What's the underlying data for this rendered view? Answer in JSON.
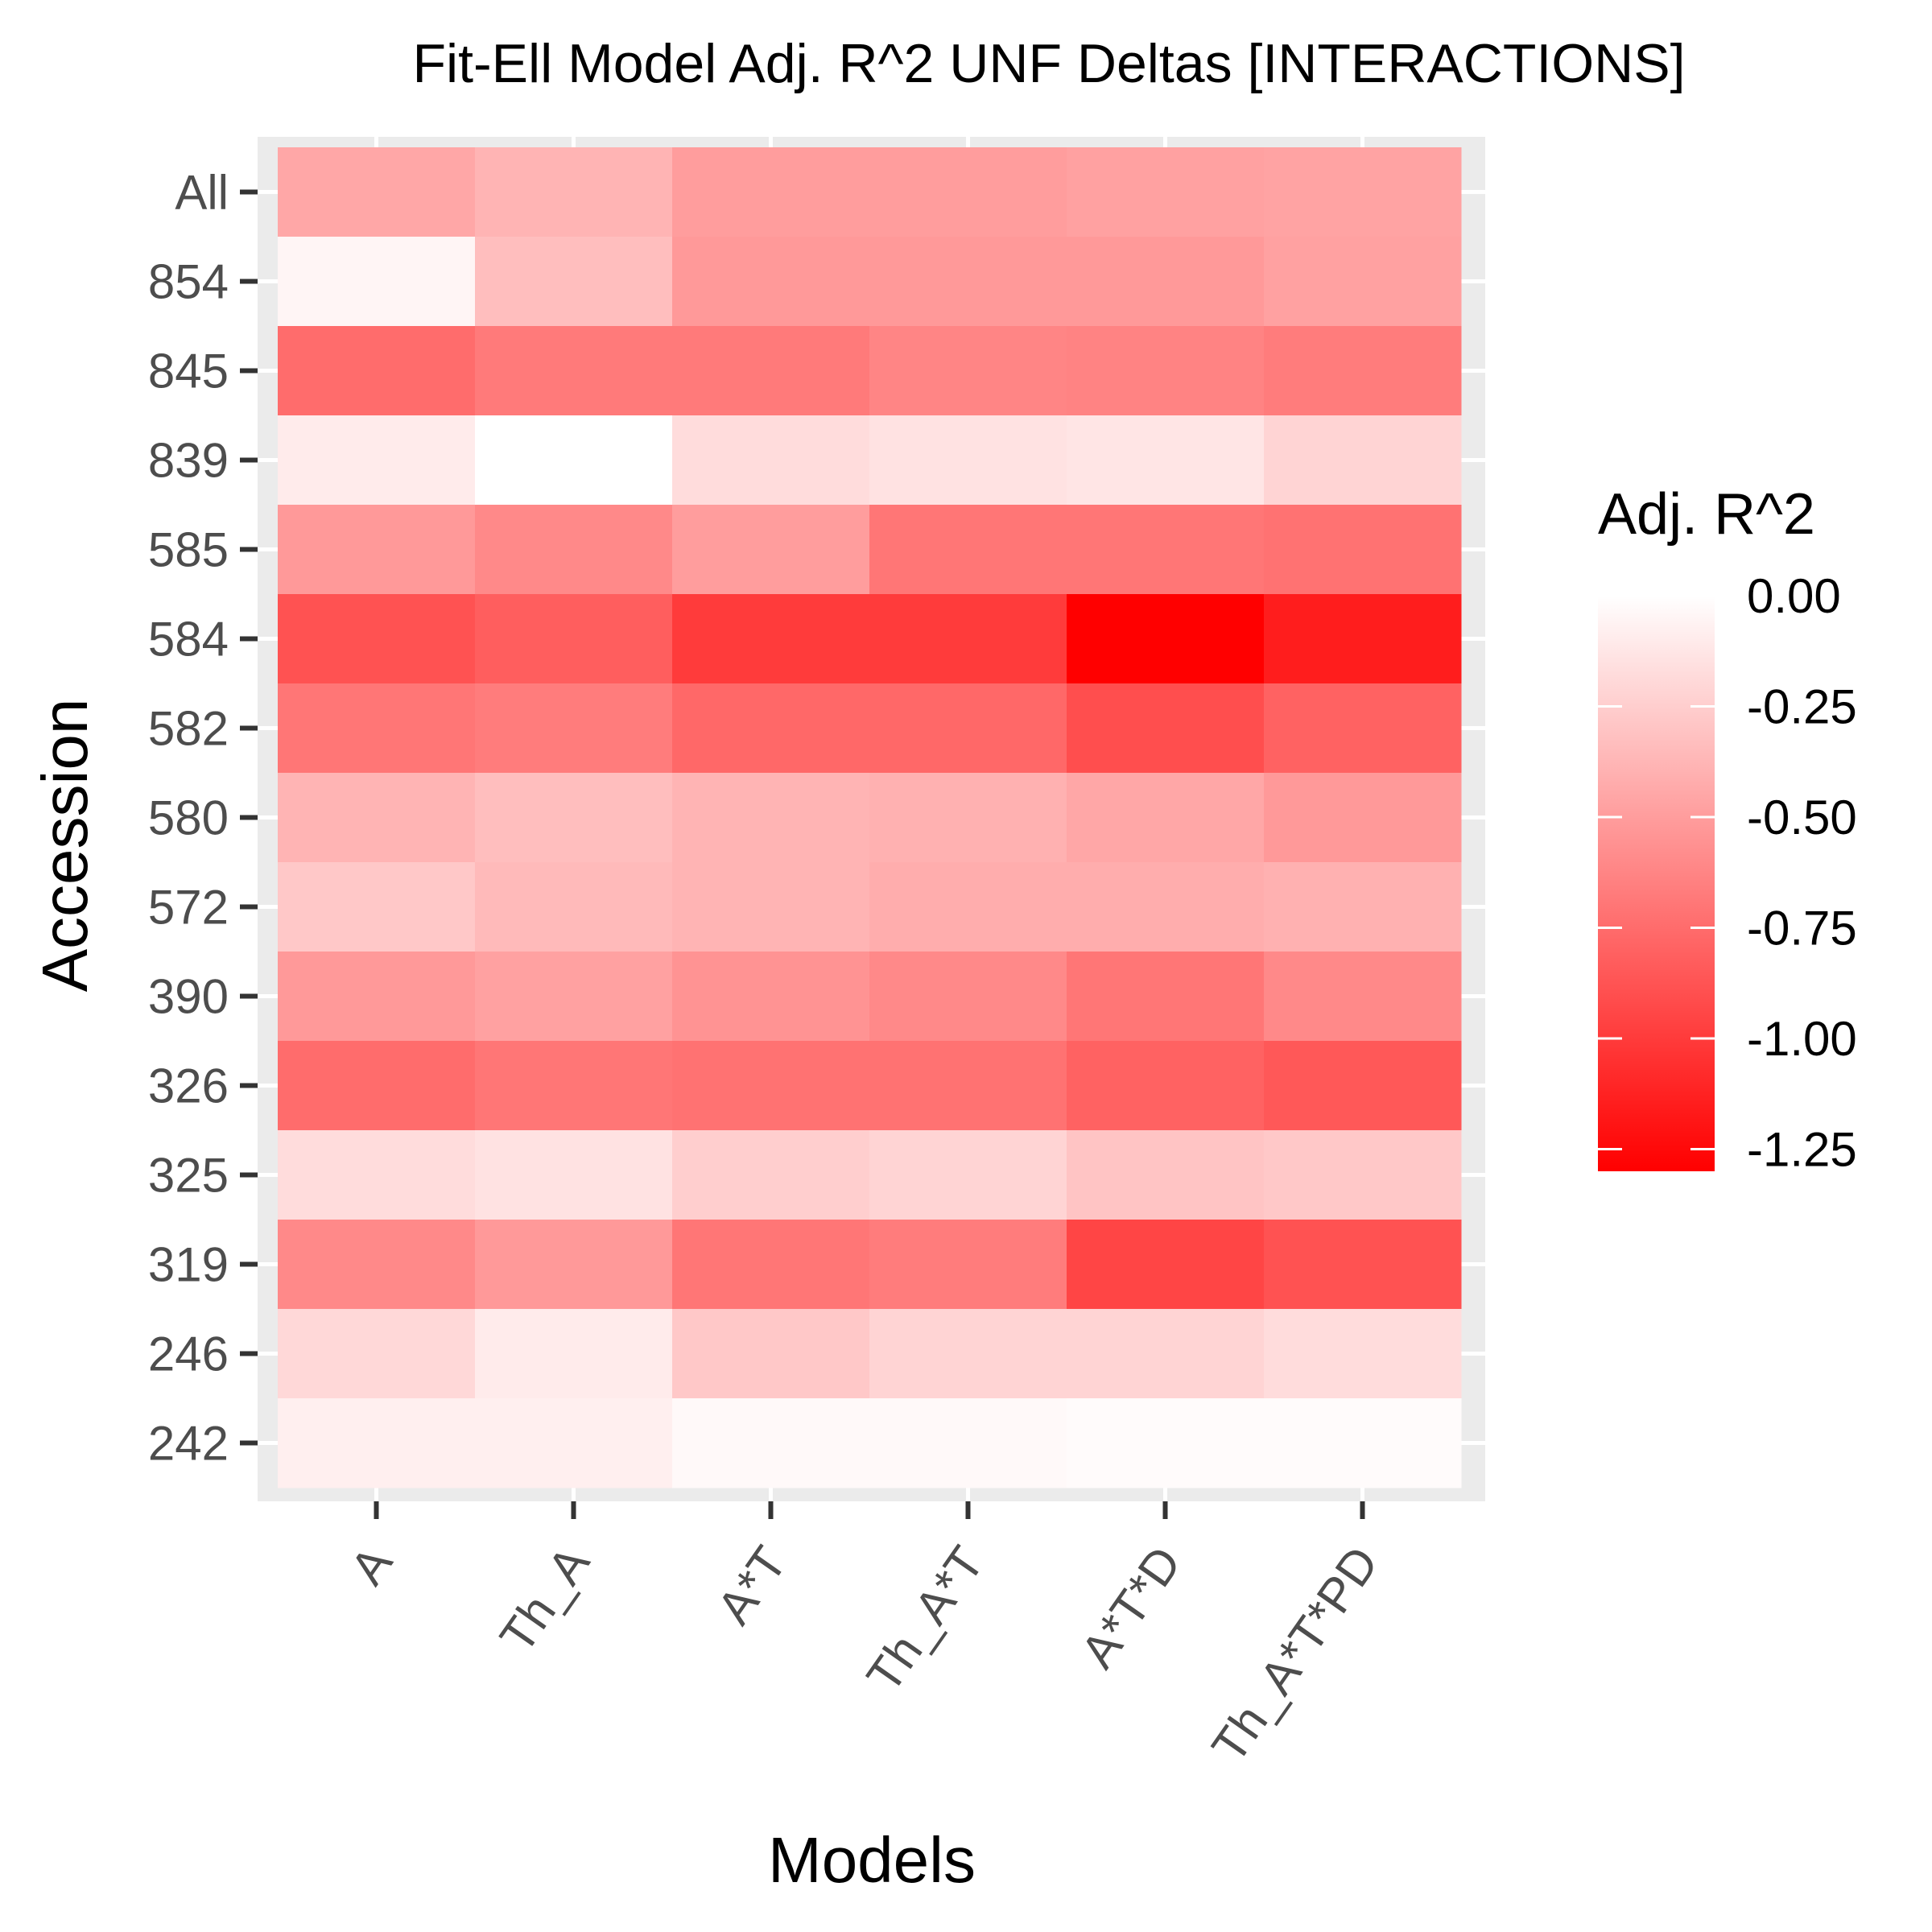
{
  "chart_data": {
    "type": "heatmap",
    "title": "Fit-Ell Model Adj. R^2 UNF Deltas [INTERACTIONS]",
    "xlabel": "Models",
    "ylabel": "Accession",
    "x_categories": [
      "A",
      "Th_A",
      "A*T",
      "Th_A*T",
      "A*T*D",
      "Th_A*T*PD"
    ],
    "y_categories": [
      "All",
      "854",
      "845",
      "839",
      "585",
      "584",
      "582",
      "580",
      "572",
      "390",
      "326",
      "325",
      "319",
      "246",
      "242"
    ],
    "values": [
      [
        -0.45,
        -0.38,
        -0.5,
        -0.5,
        -0.48,
        -0.47
      ],
      [
        -0.05,
        -0.33,
        -0.52,
        -0.52,
        -0.52,
        -0.48
      ],
      [
        -0.75,
        -0.68,
        -0.68,
        -0.62,
        -0.63,
        -0.67
      ],
      [
        -0.1,
        0.0,
        -0.18,
        -0.15,
        -0.13,
        -0.22
      ],
      [
        -0.52,
        -0.6,
        -0.5,
        -0.7,
        -0.7,
        -0.72
      ],
      [
        -0.88,
        -0.82,
        -1.0,
        -1.0,
        -1.3,
        -1.15
      ],
      [
        -0.7,
        -0.67,
        -0.77,
        -0.77,
        -0.9,
        -0.8
      ],
      [
        -0.38,
        -0.33,
        -0.38,
        -0.4,
        -0.45,
        -0.52
      ],
      [
        -0.28,
        -0.35,
        -0.38,
        -0.42,
        -0.42,
        -0.4
      ],
      [
        -0.52,
        -0.48,
        -0.55,
        -0.6,
        -0.7,
        -0.6
      ],
      [
        -0.75,
        -0.7,
        -0.72,
        -0.72,
        -0.8,
        -0.85
      ],
      [
        -0.18,
        -0.15,
        -0.25,
        -0.22,
        -0.3,
        -0.28
      ],
      [
        -0.6,
        -0.52,
        -0.7,
        -0.67,
        -0.95,
        -0.88
      ],
      [
        -0.2,
        -0.1,
        -0.28,
        -0.22,
        -0.22,
        -0.18
      ],
      [
        -0.08,
        -0.08,
        -0.03,
        -0.03,
        -0.02,
        -0.02
      ]
    ],
    "legend": {
      "title": "Adj. R^2",
      "ticks": [
        0.0,
        -0.25,
        -0.5,
        -0.75,
        -1.0,
        -1.25
      ],
      "tick_labels": [
        "0.00",
        "-0.25",
        "-0.50",
        "-0.75",
        "-1.00",
        "-1.25"
      ],
      "range": [
        -1.3,
        0.0
      ],
      "placement": "right"
    },
    "colors": {
      "low": "#ff0000",
      "high": "#ffffff",
      "panel_background": "#ebebeb",
      "grid": "#ffffff"
    },
    "grid": true
  }
}
